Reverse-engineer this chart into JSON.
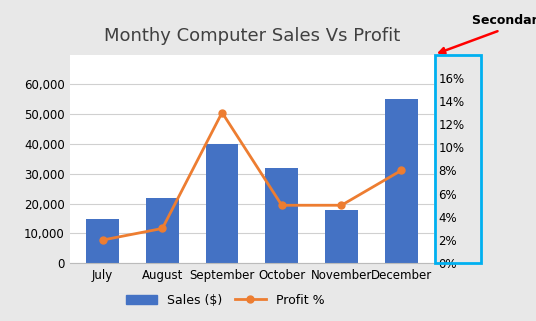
{
  "title": "Monthy Computer Sales Vs Profit",
  "categories": [
    "July",
    "August",
    "September",
    "October",
    "November",
    "December"
  ],
  "sales": [
    15000,
    22000,
    40000,
    32000,
    18000,
    55000
  ],
  "profit_pct": [
    0.02,
    0.03,
    0.13,
    0.05,
    0.05,
    0.08
  ],
  "bar_color": "#4472C4",
  "line_color": "#ED7D31",
  "primary_ylim": [
    0,
    70000
  ],
  "primary_yticks": [
    0,
    10000,
    20000,
    30000,
    40000,
    50000,
    60000
  ],
  "secondary_ylim": [
    0,
    0.18
  ],
  "secondary_yticks": [
    0.0,
    0.02,
    0.04,
    0.06,
    0.08,
    0.1,
    0.12,
    0.14,
    0.16
  ],
  "legend_sales": "Sales ($)",
  "legend_profit": "Profit %",
  "secondary_axis_label": "Secondary Axis",
  "annotation_arrow_color": "red",
  "outer_bg_color": "#E8E8E8",
  "plot_bg_color": "#FFFFFF",
  "grid_color": "#D0D0D0",
  "title_fontsize": 13,
  "tick_fontsize": 8.5,
  "legend_fontsize": 9,
  "secondary_box_color": "#00B0F0",
  "title_color": "#404040"
}
